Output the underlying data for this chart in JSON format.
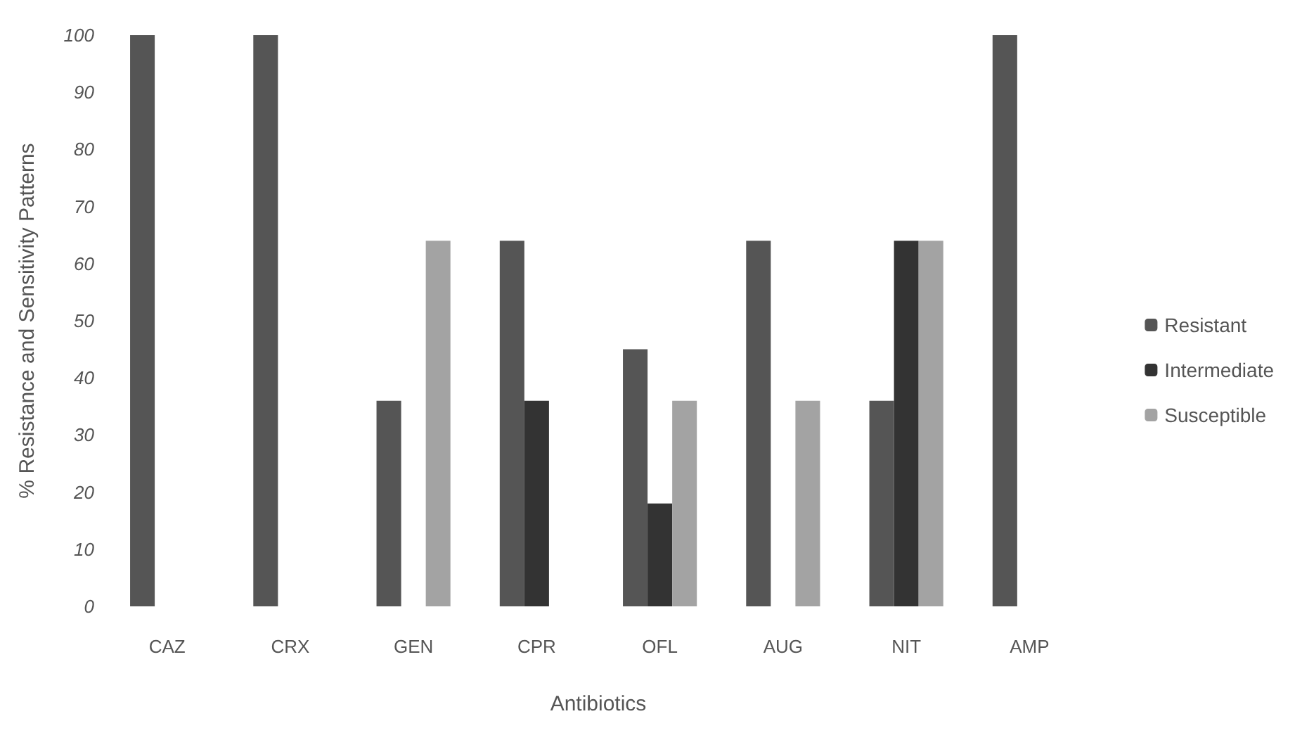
{
  "chart_data": {
    "type": "bar",
    "xlabel": "Antibiotics",
    "ylabel": "% Resistance and Sensitivity Patterns",
    "categories": [
      "CAZ",
      "CRX",
      "GEN",
      "CPR",
      "OFL",
      "AUG",
      "NIT",
      "AMP"
    ],
    "series": [
      {
        "name": "Resistant",
        "color": "#555555",
        "values": [
          100,
          100,
          36,
          64,
          45,
          64,
          36,
          100
        ]
      },
      {
        "name": "Intermediate",
        "color": "#333333",
        "values": [
          0,
          0,
          0,
          36,
          18,
          0,
          64,
          0
        ]
      },
      {
        "name": "Susceptible",
        "color": "#a3a3a3",
        "values": [
          0,
          0,
          64,
          0,
          36,
          36,
          64,
          0
        ]
      }
    ],
    "ylim": [
      0,
      100
    ],
    "yticks": [
      0,
      10,
      20,
      30,
      40,
      50,
      60,
      70,
      80,
      90,
      100
    ],
    "grid": false,
    "legend": "right"
  }
}
